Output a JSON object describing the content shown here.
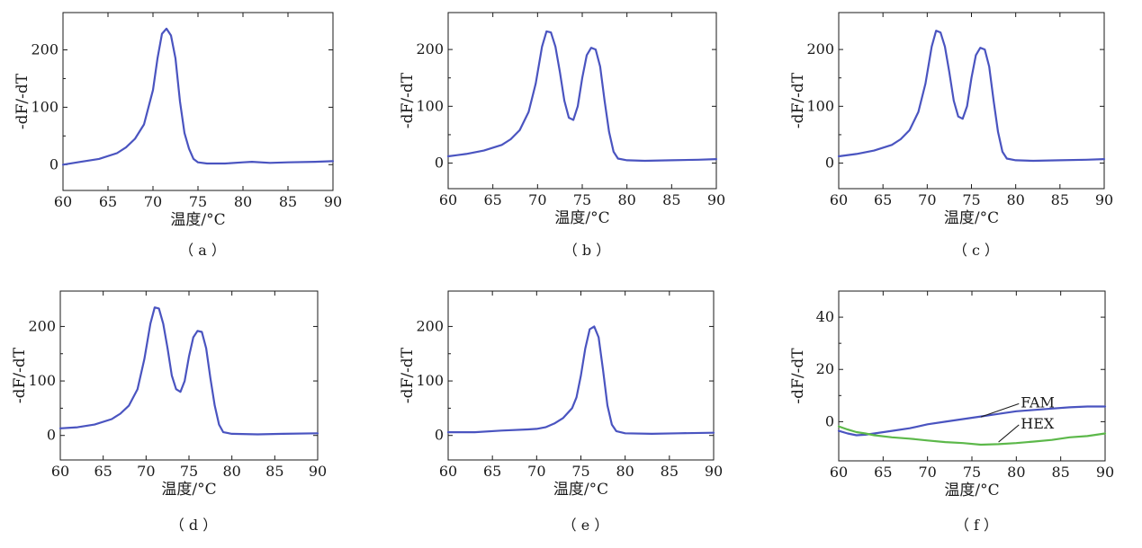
{
  "chart_data": [
    {
      "type": "line",
      "panel_label": "（ a ）",
      "xlabel": "温度/°C",
      "ylabel": "-dF/-dT",
      "xlim": [
        60,
        90
      ],
      "ylim": [
        -45,
        265
      ],
      "xticks": [
        60,
        65,
        70,
        75,
        80,
        85,
        90
      ],
      "yticks": [
        0,
        100,
        200
      ],
      "series": [
        {
          "color": "#4a54c0",
          "points": [
            [
              60,
              0
            ],
            [
              62,
              5
            ],
            [
              64,
              10
            ],
            [
              66,
              20
            ],
            [
              67,
              30
            ],
            [
              68,
              45
            ],
            [
              69,
              70
            ],
            [
              70,
              130
            ],
            [
              70.5,
              185
            ],
            [
              71,
              228
            ],
            [
              71.5,
              237
            ],
            [
              72,
              225
            ],
            [
              72.5,
              185
            ],
            [
              73,
              110
            ],
            [
              73.5,
              55
            ],
            [
              74,
              28
            ],
            [
              74.5,
              10
            ],
            [
              75,
              4
            ],
            [
              76,
              2
            ],
            [
              78,
              2
            ],
            [
              80,
              4
            ],
            [
              81,
              5
            ],
            [
              83,
              3
            ],
            [
              85,
              4
            ],
            [
              88,
              5
            ],
            [
              90,
              6
            ]
          ]
        }
      ]
    },
    {
      "type": "line",
      "panel_label": "（ b ）",
      "xlabel": "温度/°C",
      "ylabel": "-dF/-dT",
      "xlim": [
        60,
        90
      ],
      "ylim": [
        -45,
        265
      ],
      "xticks": [
        60,
        65,
        70,
        75,
        80,
        85,
        90
      ],
      "yticks": [
        0,
        100,
        200
      ],
      "series": [
        {
          "color": "#4a54c0",
          "points": [
            [
              60,
              12
            ],
            [
              62,
              16
            ],
            [
              64,
              22
            ],
            [
              66,
              32
            ],
            [
              67,
              42
            ],
            [
              68,
              58
            ],
            [
              69,
              90
            ],
            [
              69.8,
              140
            ],
            [
              70.5,
              205
            ],
            [
              71,
              232
            ],
            [
              71.5,
              230
            ],
            [
              72,
              205
            ],
            [
              72.5,
              160
            ],
            [
              73,
              110
            ],
            [
              73.5,
              80
            ],
            [
              74,
              76
            ],
            [
              74.5,
              100
            ],
            [
              75,
              150
            ],
            [
              75.5,
              190
            ],
            [
              76,
              203
            ],
            [
              76.5,
              200
            ],
            [
              77,
              170
            ],
            [
              77.5,
              110
            ],
            [
              78,
              55
            ],
            [
              78.5,
              20
            ],
            [
              79,
              8
            ],
            [
              80,
              5
            ],
            [
              82,
              4
            ],
            [
              85,
              5
            ],
            [
              88,
              6
            ],
            [
              90,
              7
            ]
          ]
        }
      ]
    },
    {
      "type": "line",
      "panel_label": "（ c ）",
      "xlabel": "温度/°C",
      "ylabel": "-dF/-dT",
      "xlim": [
        60,
        90
      ],
      "ylim": [
        -45,
        265
      ],
      "xticks": [
        60,
        65,
        70,
        75,
        80,
        85,
        90
      ],
      "yticks": [
        0,
        100,
        200
      ],
      "series": [
        {
          "color": "#4a54c0",
          "points": [
            [
              60,
              12
            ],
            [
              62,
              16
            ],
            [
              64,
              22
            ],
            [
              66,
              32
            ],
            [
              67,
              42
            ],
            [
              68,
              58
            ],
            [
              69,
              90
            ],
            [
              69.8,
              140
            ],
            [
              70.5,
              205
            ],
            [
              71,
              233
            ],
            [
              71.5,
              230
            ],
            [
              72,
              205
            ],
            [
              72.5,
              160
            ],
            [
              73,
              110
            ],
            [
              73.5,
              82
            ],
            [
              74,
              78
            ],
            [
              74.5,
              100
            ],
            [
              75,
              150
            ],
            [
              75.5,
              190
            ],
            [
              76,
              203
            ],
            [
              76.5,
              200
            ],
            [
              77,
              170
            ],
            [
              77.5,
              110
            ],
            [
              78,
              55
            ],
            [
              78.5,
              20
            ],
            [
              79,
              8
            ],
            [
              80,
              5
            ],
            [
              82,
              4
            ],
            [
              85,
              5
            ],
            [
              88,
              6
            ],
            [
              90,
              7
            ]
          ]
        }
      ]
    },
    {
      "type": "line",
      "panel_label": "（ d ）",
      "xlabel": "温度/°C",
      "ylabel": "-dF/-dT",
      "xlim": [
        60,
        90
      ],
      "ylim": [
        -45,
        265
      ],
      "xticks": [
        60,
        65,
        70,
        75,
        80,
        85,
        90
      ],
      "yticks": [
        0,
        100,
        200
      ],
      "series": [
        {
          "color": "#4a54c0",
          "points": [
            [
              60,
              13
            ],
            [
              62,
              15
            ],
            [
              64,
              20
            ],
            [
              66,
              30
            ],
            [
              67,
              40
            ],
            [
              68,
              55
            ],
            [
              69,
              85
            ],
            [
              69.8,
              140
            ],
            [
              70.5,
              205
            ],
            [
              71,
              235
            ],
            [
              71.5,
              233
            ],
            [
              72,
              205
            ],
            [
              72.5,
              160
            ],
            [
              73,
              110
            ],
            [
              73.5,
              85
            ],
            [
              74,
              80
            ],
            [
              74.5,
              100
            ],
            [
              75,
              145
            ],
            [
              75.5,
              180
            ],
            [
              76,
              192
            ],
            [
              76.5,
              190
            ],
            [
              77,
              160
            ],
            [
              77.5,
              105
            ],
            [
              78,
              55
            ],
            [
              78.5,
              20
            ],
            [
              79,
              6
            ],
            [
              80,
              3
            ],
            [
              83,
              2
            ],
            [
              86,
              3
            ],
            [
              90,
              4
            ]
          ]
        }
      ]
    },
    {
      "type": "line",
      "panel_label": "（ e ）",
      "xlabel": "温度/°C",
      "ylabel": "-dF/-dT",
      "xlim": [
        60,
        90
      ],
      "ylim": [
        -45,
        265
      ],
      "xticks": [
        60,
        65,
        70,
        75,
        80,
        85,
        90
      ],
      "yticks": [
        0,
        100,
        200
      ],
      "series": [
        {
          "color": "#4a54c0",
          "points": [
            [
              60,
              6
            ],
            [
              63,
              6
            ],
            [
              66,
              9
            ],
            [
              69,
              11
            ],
            [
              70,
              12
            ],
            [
              71,
              15
            ],
            [
              72,
              22
            ],
            [
              73,
              32
            ],
            [
              74,
              50
            ],
            [
              74.5,
              70
            ],
            [
              75,
              110
            ],
            [
              75.5,
              160
            ],
            [
              76,
              195
            ],
            [
              76.5,
              200
            ],
            [
              77,
              180
            ],
            [
              77.5,
              120
            ],
            [
              78,
              55
            ],
            [
              78.5,
              20
            ],
            [
              79,
              8
            ],
            [
              80,
              4
            ],
            [
              83,
              3
            ],
            [
              86,
              4
            ],
            [
              90,
              5
            ]
          ]
        }
      ]
    },
    {
      "type": "line",
      "panel_label": "（ f ）",
      "xlabel": "温度/°C",
      "ylabel": "-dF/-dT",
      "xlim": [
        60,
        90
      ],
      "ylim": [
        -15,
        50
      ],
      "xticks": [
        60,
        65,
        70,
        75,
        80,
        85,
        90
      ],
      "yticks": [
        0,
        20,
        40
      ],
      "series": [
        {
          "name": "FAM",
          "color": "#4a54c0",
          "label_at": [
            80.5,
            5.5
          ],
          "leader_from": [
            76,
            1.8
          ],
          "points": [
            [
              60,
              -3.5
            ],
            [
              61,
              -4.5
            ],
            [
              62,
              -5.2
            ],
            [
              63,
              -5
            ],
            [
              64,
              -4.5
            ],
            [
              66,
              -3.5
            ],
            [
              68,
              -2.5
            ],
            [
              70,
              -1
            ],
            [
              72,
              0
            ],
            [
              74,
              1
            ],
            [
              76,
              2
            ],
            [
              78,
              3
            ],
            [
              80,
              4
            ],
            [
              82,
              4.5
            ],
            [
              84,
              5
            ],
            [
              86,
              5.5
            ],
            [
              88,
              5.8
            ],
            [
              90,
              5.8
            ]
          ]
        },
        {
          "name": "HEX",
          "color": "#5cb84a",
          "label_at": [
            80.5,
            -2.6
          ],
          "leader_from": [
            78,
            -7.8
          ],
          "points": [
            [
              60,
              -1.8
            ],
            [
              61,
              -3
            ],
            [
              62,
              -4
            ],
            [
              63,
              -4.5
            ],
            [
              64,
              -5.2
            ],
            [
              66,
              -6
            ],
            [
              68,
              -6.5
            ],
            [
              70,
              -7.2
            ],
            [
              72,
              -7.8
            ],
            [
              74,
              -8.2
            ],
            [
              76,
              -8.8
            ],
            [
              78,
              -8.6
            ],
            [
              80,
              -8.2
            ],
            [
              82,
              -7.6
            ],
            [
              84,
              -7
            ],
            [
              86,
              -6
            ],
            [
              88,
              -5.5
            ],
            [
              90,
              -4.5
            ]
          ]
        }
      ]
    }
  ]
}
